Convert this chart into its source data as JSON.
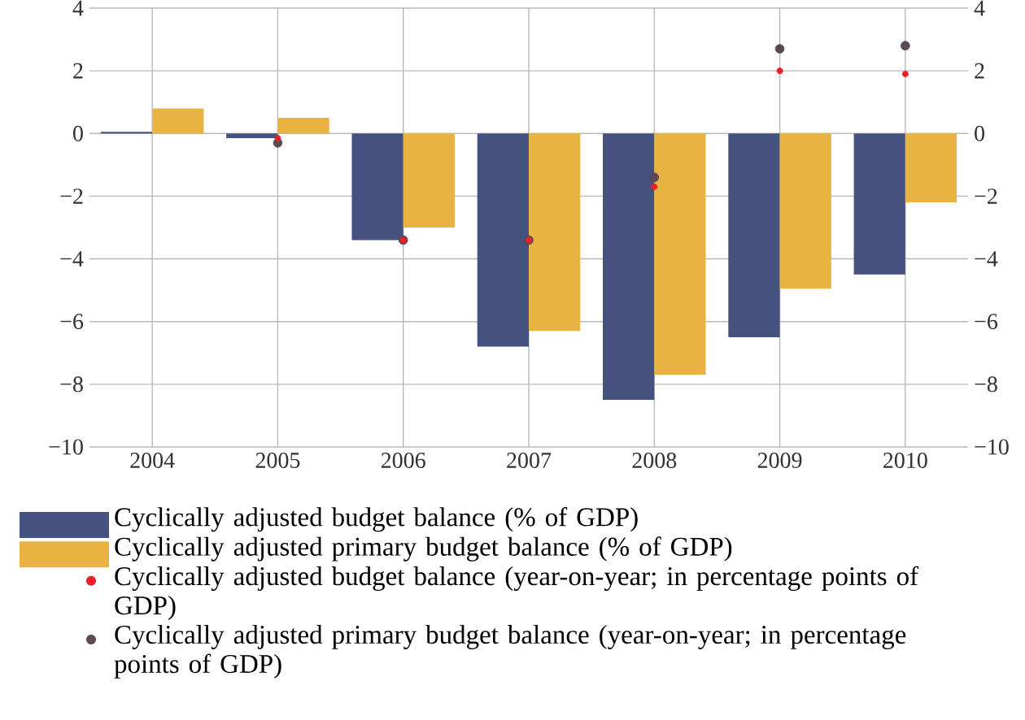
{
  "chart_data": {
    "type": "bar",
    "categories": [
      "2004",
      "2005",
      "2006",
      "2007",
      "2008",
      "2009",
      "2010"
    ],
    "series": [
      {
        "name": "Cyclically adjusted budget balance (% of GDP)",
        "color": "#45527f",
        "values": [
          0.05,
          -0.15,
          -3.4,
          -6.8,
          -8.5,
          -6.5,
          -4.5
        ]
      },
      {
        "name": "Cyclically adjusted primary budget balance (% of GDP)",
        "color": "#e8b342",
        "values": [
          0.8,
          0.5,
          -3.0,
          -6.3,
          -7.7,
          -4.95,
          -2.2
        ]
      },
      {
        "name": "Cyclically adjusted budget balance (year-on-year; in percentage points of GDP)",
        "type": "scatter",
        "marker": "circle",
        "color": "#e8202a",
        "values": [
          null,
          -0.15,
          -3.4,
          -3.4,
          -1.7,
          2.0,
          1.9
        ]
      },
      {
        "name": "Cyclically adjusted primary budget balance (year-on-year; in percentage points of GDP)",
        "type": "scatter",
        "marker": "circle",
        "color": "#5a4a55",
        "values": [
          null,
          -0.3,
          -3.4,
          -3.4,
          -1.4,
          2.7,
          2.8
        ]
      }
    ],
    "ylim": [
      -10,
      4
    ],
    "yticks": [
      {
        "value": -10,
        "label": "−10"
      },
      {
        "value": -8,
        "label": "−8"
      },
      {
        "value": -6,
        "label": "−6"
      },
      {
        "value": -4,
        "label": "−4"
      },
      {
        "value": -2,
        "label": "−2"
      },
      0,
      2,
      4
    ],
    "y2lim": [
      -10,
      4
    ],
    "y2ticks": [
      {
        "value": -10,
        "label": "−10"
      },
      {
        "value": -8,
        "label": "−8"
      },
      {
        "value": -6,
        "label": "−6"
      },
      {
        "value": -4,
        "label": "−4"
      },
      {
        "value": -2,
        "label": "−2"
      },
      0,
      2,
      4
    ],
    "grid": true,
    "legend": "bottom"
  }
}
